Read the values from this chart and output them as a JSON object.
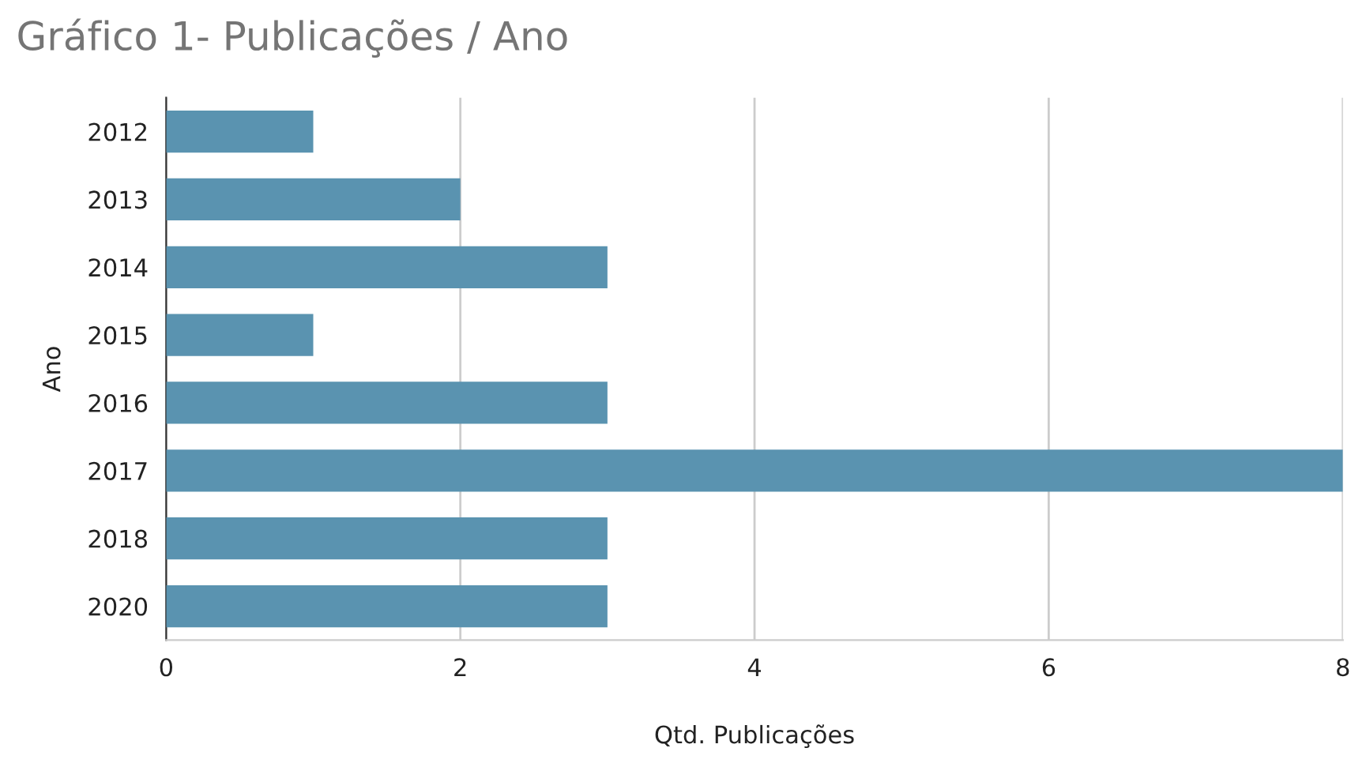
{
  "chart_data": {
    "type": "bar",
    "orientation": "horizontal",
    "title": "Gráfico 1- Publicações / Ano",
    "xlabel": "Qtd. Publicações",
    "ylabel": "Ano",
    "categories": [
      "2012",
      "2013",
      "2014",
      "2015",
      "2016",
      "2017",
      "2018",
      "2020"
    ],
    "values": [
      1,
      2,
      3,
      1,
      3,
      8,
      3,
      3
    ],
    "color": "#5a93b0",
    "xlim": [
      0,
      8
    ],
    "xticks": [
      0,
      2,
      4,
      6,
      8
    ],
    "grid": "x",
    "legend": false
  }
}
